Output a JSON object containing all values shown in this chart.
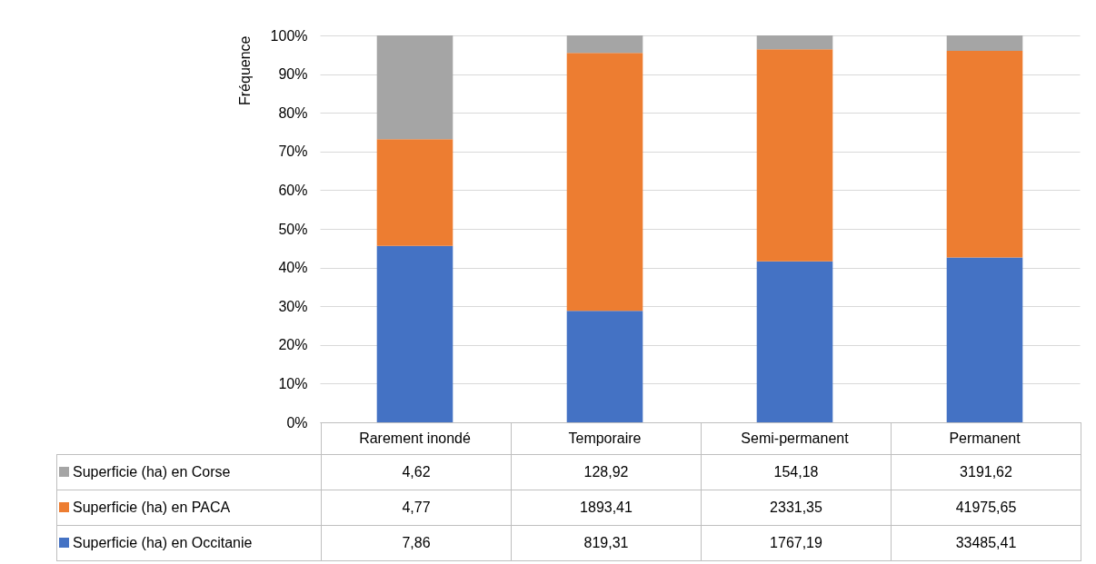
{
  "chart_data": {
    "type": "bar",
    "stacked": true,
    "ylabel": "Fréquence",
    "categories": [
      "Rarement inondé",
      "Temporaire",
      "Semi-permanent",
      "Permanent"
    ],
    "series": [
      {
        "name": "Superficie (ha) en Occitanie",
        "color": "#4472c4",
        "values": [
          45.6,
          28.8,
          41.6,
          42.6
        ]
      },
      {
        "name": "Superficie (ha) en PACA",
        "color": "#ed7d31",
        "values": [
          27.6,
          66.7,
          54.8,
          53.4
        ]
      },
      {
        "name": "Superficie (ha) en Corse",
        "color": "#a5a5a5",
        "values": [
          26.8,
          4.5,
          3.6,
          4.0
        ]
      }
    ],
    "annotations": [
      "4,62",
      "128,92",
      "154,18",
      "3191,62",
      "4,77",
      "1893,41",
      "2331,35",
      "41975,65",
      "7,86",
      "819,31",
      "1767,19",
      "33485,41"
    ],
    "ylim": [
      0,
      100
    ],
    "yticks": [
      {
        "value": 0,
        "label": "0%"
      },
      {
        "value": 10,
        "label": "10%"
      },
      {
        "value": 20,
        "label": "20%"
      },
      {
        "value": 30,
        "label": "30%"
      },
      {
        "value": 40,
        "label": "40%"
      },
      {
        "value": 50,
        "label": "50%"
      },
      {
        "value": 60,
        "label": "60%"
      },
      {
        "value": 70,
        "label": "70%"
      },
      {
        "value": 80,
        "label": "80%"
      },
      {
        "value": 90,
        "label": "90%"
      },
      {
        "value": 100,
        "label": "100%"
      }
    ],
    "grid": "y",
    "legend": "bottom left"
  }
}
